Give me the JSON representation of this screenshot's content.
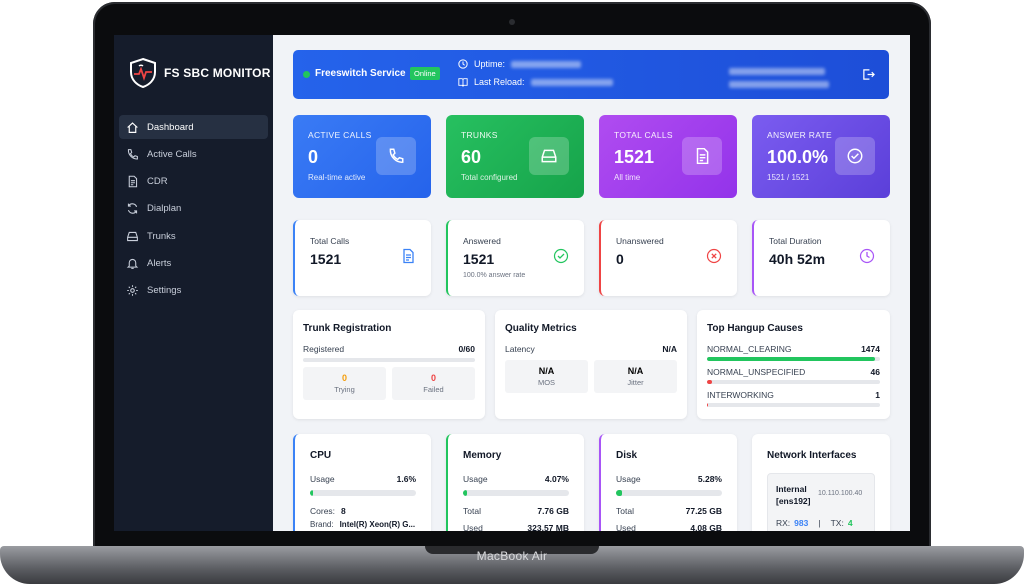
{
  "device": {
    "label": "MacBook Air"
  },
  "app": {
    "name": "FS SBC MONITOR"
  },
  "sidebar": {
    "items": [
      {
        "label": "Dashboard",
        "icon": "home-icon",
        "active": true
      },
      {
        "label": "Active Calls",
        "icon": "phone-icon",
        "active": false
      },
      {
        "label": "CDR",
        "icon": "document-icon",
        "active": false
      },
      {
        "label": "Dialplan",
        "icon": "refresh-icon",
        "active": false
      },
      {
        "label": "Trunks",
        "icon": "drive-icon",
        "active": false
      },
      {
        "label": "Alerts",
        "icon": "bell-icon",
        "active": false
      },
      {
        "label": "Settings",
        "icon": "gear-icon",
        "active": false
      }
    ]
  },
  "status": {
    "service": "Freeswitch Service",
    "badge": "Online",
    "uptime_label": "Uptime:",
    "reload_label": "Last Reload:"
  },
  "kpis": [
    {
      "label": "ACTIVE CALLS",
      "value": "0",
      "sub": "Real-time active",
      "icon": "phone-icon",
      "color": "#2f6df0"
    },
    {
      "label": "TRUNKS",
      "value": "60",
      "sub": "Total configured",
      "icon": "drive-icon",
      "color": "#22b455"
    },
    {
      "label": "TOTAL CALLS",
      "value": "1521",
      "sub": "All time",
      "icon": "document-icon",
      "color": "#a63fe8"
    },
    {
      "label": "ANSWER RATE",
      "value": "100.0%",
      "sub": "1521 / 1521",
      "icon": "check-circle-icon",
      "color": "#6b4ce6"
    }
  ],
  "stats": [
    {
      "label": "Total Calls",
      "value": "1521",
      "sub": "",
      "icon": "document-icon",
      "color": "#3b82f6"
    },
    {
      "label": "Answered",
      "value": "1521",
      "sub": "100.0% answer rate",
      "icon": "check-circle-icon",
      "color": "#22c55e"
    },
    {
      "label": "Unanswered",
      "value": "0",
      "sub": "",
      "icon": "x-circle-icon",
      "color": "#ef4444"
    },
    {
      "label": "Total Duration",
      "value": "40h 52m",
      "sub": "",
      "icon": "clock-icon",
      "color": "#a855f7"
    }
  ],
  "trunk_registration": {
    "title": "Trunk Registration",
    "registered_label": "Registered",
    "registered_value": "0/60",
    "registered_fraction": 0,
    "trying_value": "0",
    "trying_label": "Trying",
    "failed_value": "0",
    "failed_label": "Failed"
  },
  "quality": {
    "title": "Quality Metrics",
    "latency_label": "Latency",
    "latency_value": "N/A",
    "mos_value": "N/A",
    "mos_label": "MOS",
    "jitter_value": "N/A",
    "jitter_label": "Jitter"
  },
  "hangup": {
    "title": "Top Hangup Causes",
    "items": [
      {
        "label": "NORMAL_CLEARING",
        "value": "1474",
        "fraction": 0.969,
        "color": "#22c55e"
      },
      {
        "label": "NORMAL_UNSPECIFIED",
        "value": "46",
        "fraction": 0.03,
        "color": "#ef4444"
      },
      {
        "label": "INTERWORKING",
        "value": "1",
        "fraction": 0.001,
        "color": "#ef4444"
      }
    ]
  },
  "system": [
    {
      "title": "CPU",
      "usage_label": "Usage",
      "usage": "1.6%",
      "fraction": 0.016,
      "color": "#3b82f6",
      "bar_color": "#22c55e",
      "row1_label": "Cores:",
      "row1_value": "8",
      "row2_label": "Brand:",
      "row2_value": "Intel(R) Xeon(R) G..."
    },
    {
      "title": "Memory",
      "usage_label": "Usage",
      "usage": "4.07%",
      "fraction": 0.0407,
      "color": "#22c55e",
      "bar_color": "#22c55e",
      "row1_label": "Total",
      "row1_value": "7.76 GB",
      "row2_label": "Used",
      "row2_value": "323.57 MB"
    },
    {
      "title": "Disk",
      "usage_label": "Usage",
      "usage": "5.28%",
      "fraction": 0.0528,
      "color": "#a855f7",
      "bar_color": "#22c55e",
      "row1_label": "Total",
      "row1_value": "77.25 GB",
      "row2_label": "Used",
      "row2_value": "4.08 GB"
    }
  ],
  "network": {
    "title": "Network Interfaces",
    "name": "Internal",
    "iface": "[ens192]",
    "ip": "10.110.100.40",
    "rx_label": "RX:",
    "rx_value": "983",
    "sep": "|",
    "tx_label": "TX:",
    "tx_value": "4"
  }
}
